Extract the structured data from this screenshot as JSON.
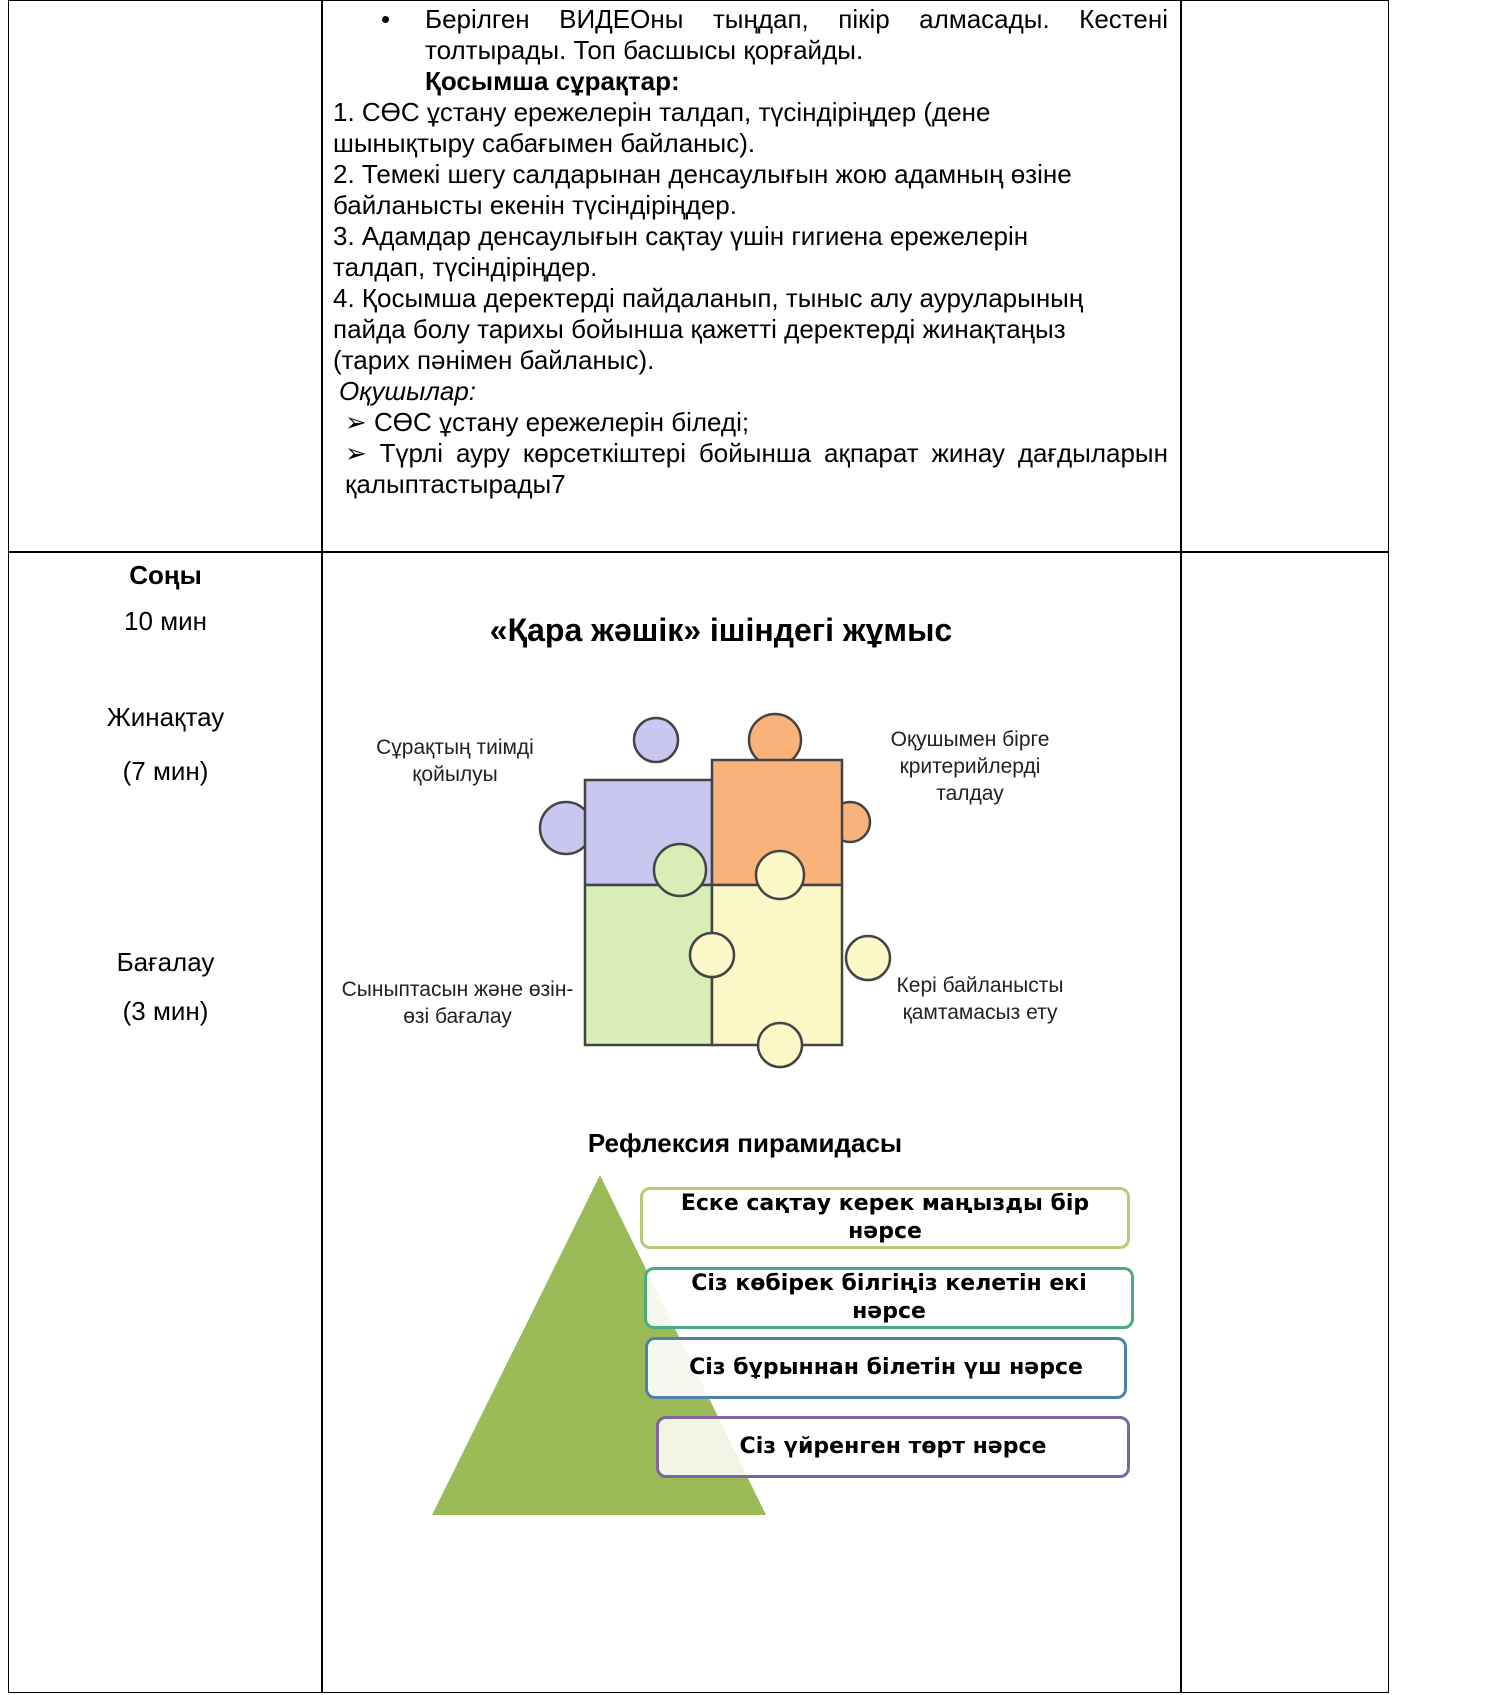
{
  "row1": {
    "middle": {
      "bullet": "Берілген ВИДЕОны тыңдап, пікір алмасады. Кестені толтырады. Топ басшысы қорғайды.",
      "extra_heading": "Қосымша сұрақтар:",
      "questions": [
        "1. СӨС ұстану ережелерін талдап, түсіндіріңдер (дене шынықтыру сабағымен байланыс).",
        "2. Темекі шегу салдарынан денсаулығын жою адамның өзіне байланысты екенін түсіндіріңдер.",
        "3. Адамдар денсаулығын сақтау үшін гигиена ережелерін талдап, түсіндіріңдер.",
        "4. Қосымша деректерді пайдаланып, тыныс алу ауруларының пайда болу тарихы бойынша қажетті деректерді жинақтаңыз (тарих пәнімен байланыс)."
      ],
      "students_heading": "Оқушылар:",
      "outcomes": [
        "СӨС ұстану ережелерін біледі;",
        "Түрлі ауру көрсеткіштері бойынша ақпарат жинау дағдыларын қалыптастырады7"
      ]
    }
  },
  "row2": {
    "left": [
      "Соңы",
      "10 мин",
      "Жинақтау",
      "(7 мин)",
      "Бағалау",
      "(3 мин)"
    ],
    "figure": {
      "title": "«Қара жәшік»  ішіндегі жұмыс",
      "puzzle_labels": [
        "Сұрақтың тиімді қойылуы",
        "Оқушымен бірге критерийлерді талдау",
        "Сыныптасын және өзін-өзі бағалау",
        "Кері байланысты қамтамасыз ету"
      ]
    },
    "pyramid": {
      "title": "Рефлексия пирамидасы",
      "levels": [
        "Еске сақтау керек маңызды бір нәрсе",
        "Сіз көбірек білгіңіз келетін екі нәрсе",
        "Сіз бұрыннан білетін үш нәрсе",
        "Сіз үйренген төрт нәрсе"
      ]
    }
  }
}
